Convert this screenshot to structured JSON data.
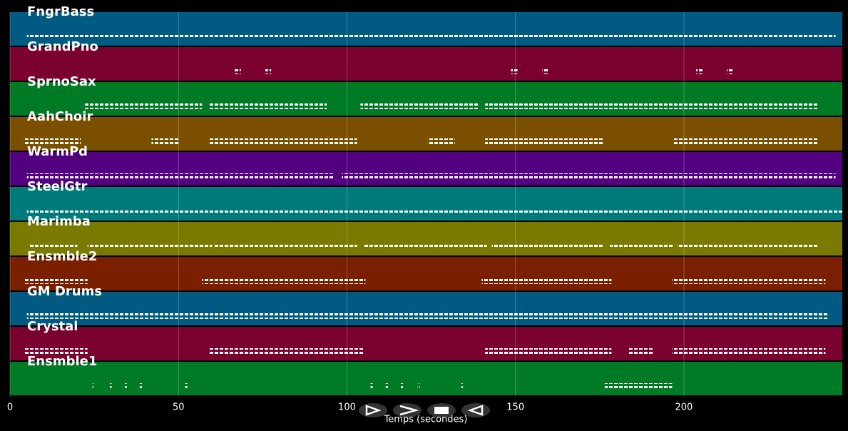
{
  "x_axis": {
    "label": "Temps (secondes)",
    "xlim": [
      0,
      247
    ],
    "xticks": [
      0,
      50,
      100,
      150,
      200
    ]
  },
  "tracks": [
    {
      "name": "FngrBass",
      "color": "#005a82",
      "regions": [
        [
          5,
          245
        ]
      ]
    },
    {
      "name": "GrandPno",
      "color": "#7a0030",
      "regions": [
        [
          66.5,
          68.5
        ],
        [
          75.8,
          77.5
        ],
        [
          148.7,
          150.6
        ],
        [
          158,
          159.8
        ],
        [
          203.6,
          205.8
        ],
        [
          212.7,
          214.8
        ]
      ]
    },
    {
      "name": "SprnoSax",
      "color": "#007a25",
      "regions": [
        [
          22,
          57
        ],
        [
          59,
          94
        ],
        [
          104,
          139
        ],
        [
          141,
          240
        ]
      ]
    },
    {
      "name": "AahChoir",
      "color": "#7a5000",
      "regions": [
        [
          4,
          21
        ],
        [
          42,
          50
        ],
        [
          59,
          103
        ],
        [
          124,
          132
        ],
        [
          141,
          176
        ],
        [
          197,
          240
        ]
      ]
    },
    {
      "name": "WarmPd",
      "color": "#520080",
      "regions": [
        [
          5,
          96
        ],
        [
          98.5,
          245
        ]
      ]
    },
    {
      "name": "SteelGtr",
      "color": "#007a7a",
      "regions": [
        [
          5,
          247
        ]
      ]
    },
    {
      "name": "Marimba",
      "color": "#7a7a00",
      "regions": [
        [
          5.5,
          20
        ],
        [
          23,
          60
        ],
        [
          60.5,
          103
        ],
        [
          105,
          141.5
        ],
        [
          143,
          176
        ],
        [
          178,
          197
        ],
        [
          198,
          240
        ]
      ]
    },
    {
      "name": "Ensmble2",
      "color": "#7a2000",
      "regions": [
        [
          4,
          23
        ],
        [
          57,
          105.5
        ],
        [
          140,
          178.5
        ],
        [
          196.5,
          242
        ]
      ]
    },
    {
      "name": "GM Drums",
      "color": "#005a82",
      "regions": [
        [
          5,
          243
        ]
      ]
    },
    {
      "name": "Crystal",
      "color": "#7a0030",
      "regions": [
        [
          4,
          23
        ],
        [
          59,
          105
        ],
        [
          141,
          178.5
        ],
        [
          183.5,
          191
        ],
        [
          196.5,
          242
        ]
      ]
    },
    {
      "name": "Ensmble1",
      "color": "#007a25",
      "regions": [
        [
          24.5,
          25
        ],
        [
          29.5,
          30
        ],
        [
          34,
          34.5
        ],
        [
          38.5,
          39
        ],
        [
          52,
          52.5
        ],
        [
          107,
          107.5
        ],
        [
          111.5,
          112
        ],
        [
          116,
          116.5
        ],
        [
          121,
          121.5
        ],
        [
          134,
          134.5
        ],
        [
          176.5,
          196.5
        ]
      ]
    }
  ]
}
